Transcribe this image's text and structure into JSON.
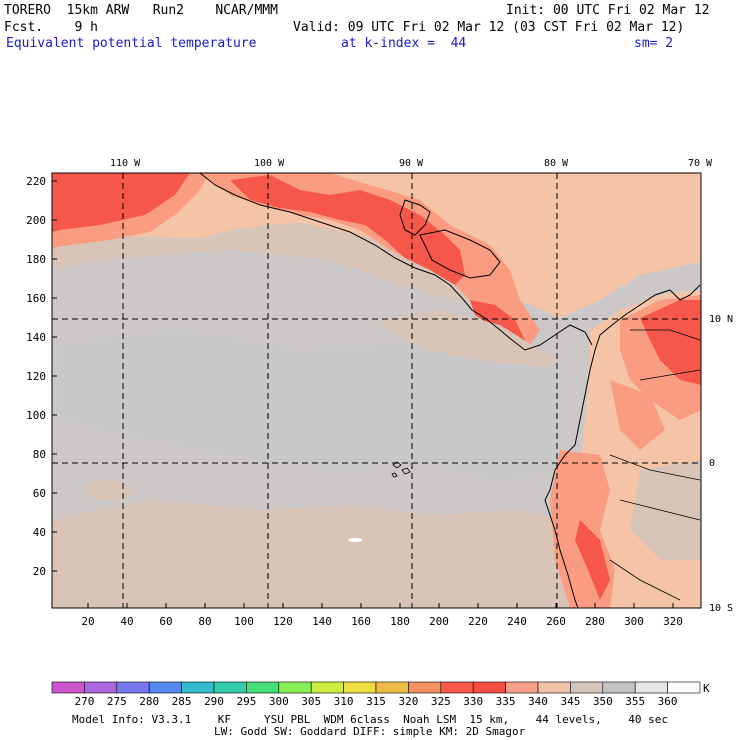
{
  "header": {
    "model_line": "TORERO  15km ARW   Run2    NCAR/MMM",
    "init_line": "Init: 00 UTC Fri 02 Mar 12",
    "fcst_line": "Fcst.    9 h",
    "valid_line": "Valid: 09 UTC Fri 02 Mar 12 (03 CST Fri 02 Mar 12)",
    "field_name": "Equivalent potential temperature",
    "level": "at k-index =  44",
    "smoothing": "sm= 2"
  },
  "map": {
    "lon_labels": [
      "110 W",
      "100 W",
      "90 W",
      "80 W",
      "70 W"
    ],
    "lat_labels": [
      "10 N",
      "0",
      "10 S"
    ],
    "y_ticks": [
      "220",
      "200",
      "180",
      "160",
      "140",
      "120",
      "100",
      "80",
      "60",
      "40",
      "20"
    ],
    "x_ticks": [
      "20",
      "40",
      "60",
      "80",
      "100",
      "120",
      "140",
      "160",
      "180",
      "200",
      "220",
      "240",
      "260",
      "280",
      "300",
      "320"
    ],
    "colors": {
      "bg_gray": "#cdc8c8",
      "light_tan": "#f5c4a7",
      "tan": "#d9c5b8",
      "salmon": "#fa9c82",
      "red_orange": "#f5584a",
      "pale_gray": "#c8c8c8"
    }
  },
  "colorbar": {
    "labels": [
      "270",
      "275",
      "280",
      "285",
      "290",
      "295",
      "300",
      "305",
      "310",
      "315",
      "320",
      "325",
      "330",
      "335",
      "340",
      "345",
      "350",
      "355",
      "360"
    ],
    "unit": "K",
    "colors": [
      "#cc55cc",
      "#aa66dd",
      "#7777ee",
      "#5588ee",
      "#33bbcc",
      "#33ccaa",
      "#44dd77",
      "#88ee55",
      "#ccee44",
      "#eedd44",
      "#eebb44",
      "#f59060",
      "#f55a48",
      "#f54d40",
      "#f9a08a",
      "#f2c2a8",
      "#d3c5bc",
      "#c4c4c4",
      "#e6e6e6",
      "#ffffff"
    ]
  },
  "footer": {
    "line1": "Model Info: V3.3.1    KF     YSU PBL  WDM 6class  Noah LSM  15 km,    44 levels,    40 sec",
    "line2": "LW: Godd SW: Goddard DIFF: simple KM: 2D Smagor"
  }
}
